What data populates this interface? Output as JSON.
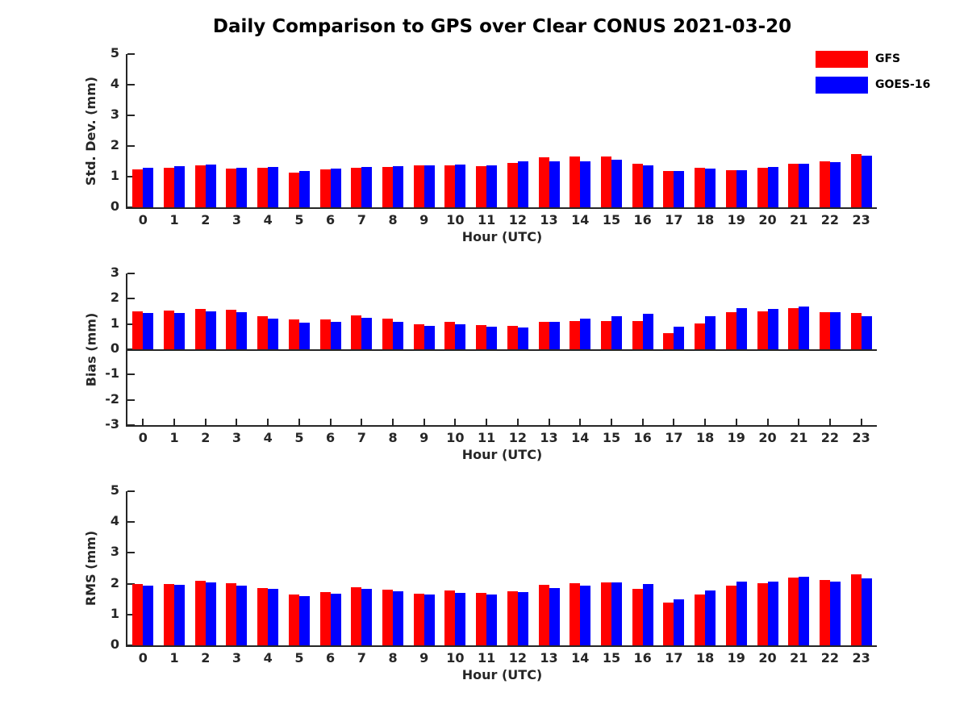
{
  "figure": {
    "title": "Daily Comparison to GPS over Clear CONUS 2021-03-20",
    "background": "#ffffff",
    "axis_color": "#262626",
    "text_color": "#000000"
  },
  "legend": {
    "position": "top-right",
    "items": [
      {
        "label": "GFS",
        "color": "#ff0000"
      },
      {
        "label": "GOES-16",
        "color": "#0000ff"
      }
    ]
  },
  "chart_data": [
    {
      "type": "bar",
      "title": "",
      "ylabel": "Std. Dev. (mm)",
      "xlabel": "Hour (UTC)",
      "ylim": [
        0,
        5
      ],
      "yticks": [
        0,
        1,
        2,
        3,
        4,
        5
      ],
      "grid": false,
      "categories": [
        "0",
        "1",
        "2",
        "3",
        "4",
        "5",
        "6",
        "7",
        "8",
        "9",
        "10",
        "11",
        "12",
        "13",
        "14",
        "15",
        "16",
        "17",
        "18",
        "19",
        "20",
        "21",
        "22",
        "23"
      ],
      "series": [
        {
          "name": "GFS",
          "color": "#ff0000",
          "values": [
            1.25,
            1.3,
            1.36,
            1.26,
            1.29,
            1.14,
            1.24,
            1.28,
            1.32,
            1.36,
            1.36,
            1.35,
            1.45,
            1.62,
            1.67,
            1.65,
            1.42,
            1.19,
            1.29,
            1.22,
            1.29,
            1.41,
            1.51,
            1.75
          ]
        },
        {
          "name": "GOES-16",
          "color": "#0000ff",
          "values": [
            1.29,
            1.33,
            1.39,
            1.28,
            1.31,
            1.18,
            1.26,
            1.31,
            1.34,
            1.38,
            1.39,
            1.38,
            1.49,
            1.5,
            1.51,
            1.55,
            1.38,
            1.19,
            1.26,
            1.2,
            1.31,
            1.43,
            1.47,
            1.68
          ]
        }
      ]
    },
    {
      "type": "bar",
      "title": "",
      "ylabel": "Bias (mm)",
      "xlabel": "Hour (UTC)",
      "ylim": [
        -3,
        3
      ],
      "yticks": [
        -3,
        -2,
        -1,
        0,
        1,
        2,
        3
      ],
      "grid": false,
      "categories": [
        "0",
        "1",
        "2",
        "3",
        "4",
        "5",
        "6",
        "7",
        "8",
        "9",
        "10",
        "11",
        "12",
        "13",
        "14",
        "15",
        "16",
        "17",
        "18",
        "19",
        "20",
        "21",
        "22",
        "23"
      ],
      "series": [
        {
          "name": "GFS",
          "color": "#ff0000",
          "values": [
            1.5,
            1.53,
            1.6,
            1.57,
            1.3,
            1.17,
            1.18,
            1.33,
            1.22,
            1.0,
            1.08,
            0.97,
            0.93,
            1.08,
            1.12,
            1.13,
            1.12,
            0.65,
            1.03,
            1.47,
            1.51,
            1.62,
            1.47,
            1.44
          ]
        },
        {
          "name": "GOES-16",
          "color": "#0000ff",
          "values": [
            1.44,
            1.45,
            1.51,
            1.48,
            1.2,
            1.06,
            1.08,
            1.24,
            1.08,
            0.92,
            0.98,
            0.9,
            0.85,
            1.08,
            1.21,
            1.3,
            1.41,
            0.88,
            1.3,
            1.63,
            1.59,
            1.7,
            1.47,
            1.3
          ]
        }
      ]
    },
    {
      "type": "bar",
      "title": "",
      "ylabel": "RMS (mm)",
      "xlabel": "Hour (UTC)",
      "ylim": [
        0,
        5
      ],
      "yticks": [
        0,
        1,
        2,
        3,
        4,
        5
      ],
      "grid": false,
      "categories": [
        "0",
        "1",
        "2",
        "3",
        "4",
        "5",
        "6",
        "7",
        "8",
        "9",
        "10",
        "11",
        "12",
        "13",
        "14",
        "15",
        "16",
        "17",
        "18",
        "19",
        "20",
        "21",
        "22",
        "23"
      ],
      "series": [
        {
          "name": "GFS",
          "color": "#ff0000",
          "values": [
            2.0,
            2.0,
            2.1,
            2.02,
            1.85,
            1.64,
            1.72,
            1.88,
            1.8,
            1.67,
            1.77,
            1.7,
            1.75,
            1.97,
            2.02,
            2.03,
            1.83,
            1.38,
            1.64,
            1.93,
            2.01,
            2.19,
            2.12,
            2.31
          ]
        },
        {
          "name": "GOES-16",
          "color": "#0000ff",
          "values": [
            1.95,
            1.97,
            2.05,
            1.95,
            1.82,
            1.6,
            1.67,
            1.84,
            1.75,
            1.64,
            1.71,
            1.66,
            1.74,
            1.86,
            1.95,
            2.03,
            1.98,
            1.5,
            1.79,
            2.07,
            2.06,
            2.22,
            2.07,
            2.18
          ]
        }
      ]
    }
  ]
}
